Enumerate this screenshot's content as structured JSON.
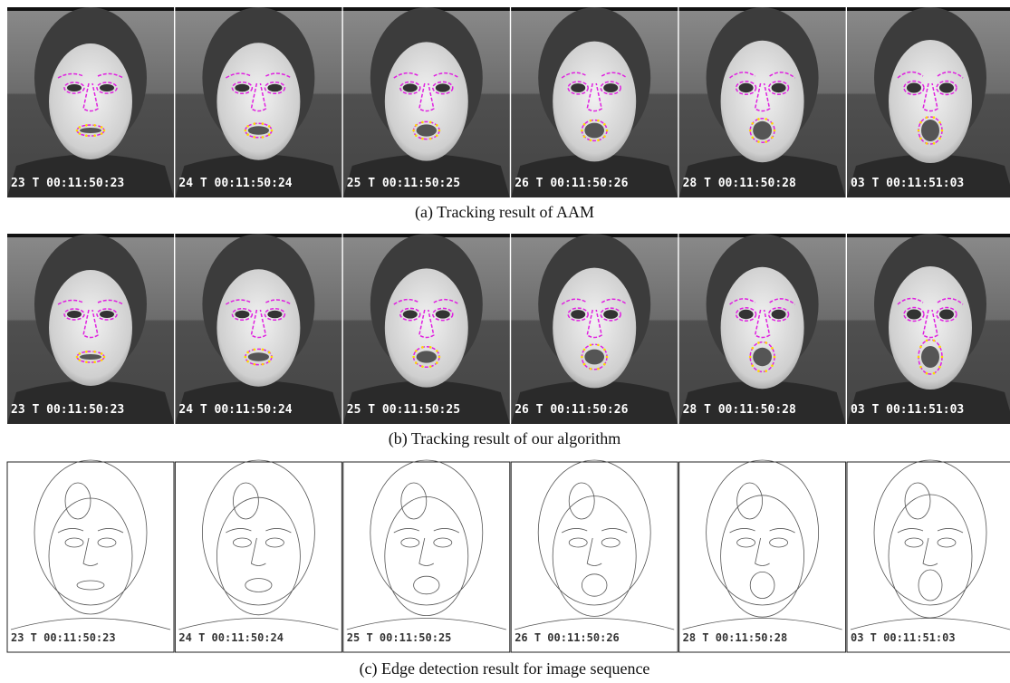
{
  "rows": [
    {
      "caption": "(a) Tracking result of AAM"
    },
    {
      "caption": "(b) Tracking result of our algorithm"
    },
    {
      "caption": "(c) Edge detection result for image sequence"
    }
  ],
  "frames": [
    {
      "timecode": "23 T 00:11:50:23"
    },
    {
      "timecode": "24 T 00:11:50:24"
    },
    {
      "timecode": "25 T 00:11:50:25"
    },
    {
      "timecode": "26 T 00:11:50:26"
    },
    {
      "timecode": "28 T 00:11:50:28"
    },
    {
      "timecode": "03 T 00:11:51:03"
    }
  ]
}
